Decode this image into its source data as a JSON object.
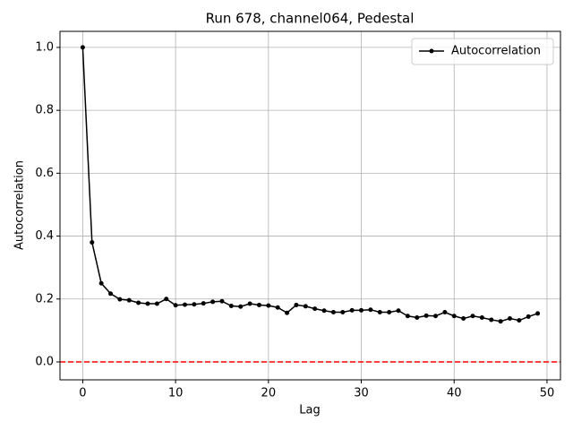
{
  "chart_data": {
    "type": "line",
    "title": "Run 678, channel064, Pedestal",
    "x_label": "Lag",
    "y_label": "Autocorrelation",
    "x": [
      0,
      1,
      2,
      3,
      4,
      5,
      6,
      7,
      8,
      9,
      10,
      11,
      12,
      13,
      14,
      15,
      16,
      17,
      18,
      19,
      20,
      21,
      22,
      23,
      24,
      25,
      26,
      27,
      28,
      29,
      30,
      31,
      32,
      33,
      34,
      35,
      36,
      37,
      38,
      39,
      40,
      41,
      42,
      43,
      44,
      45,
      46,
      47,
      48,
      49
    ],
    "series": [
      {
        "name": "Autocorrelation",
        "color": "#000000",
        "values": [
          1.0,
          0.38,
          0.25,
          0.217,
          0.199,
          0.196,
          0.188,
          0.185,
          0.185,
          0.2,
          0.18,
          0.182,
          0.183,
          0.186,
          0.191,
          0.193,
          0.178,
          0.176,
          0.185,
          0.181,
          0.179,
          0.173,
          0.156,
          0.181,
          0.177,
          0.169,
          0.163,
          0.158,
          0.158,
          0.164,
          0.164,
          0.166,
          0.158,
          0.158,
          0.163,
          0.146,
          0.141,
          0.147,
          0.146,
          0.158,
          0.146,
          0.138,
          0.146,
          0.141,
          0.134,
          0.129,
          0.138,
          0.132,
          0.144,
          0.154
        ]
      }
    ],
    "reference_line": {
      "value": 0,
      "color": "#ff0000"
    },
    "xlim": [
      -2.45,
      51.45
    ],
    "xticks": [
      0,
      10,
      20,
      30,
      40,
      50
    ],
    "ylim": [
      -0.057,
      1.051
    ],
    "yticks": [
      {
        "value": 0,
        "label": "0.0"
      },
      0.2,
      0.4,
      0.6,
      0.8,
      {
        "value": 1,
        "label": "1.0"
      }
    ],
    "grid": true,
    "legend": "upper right"
  }
}
